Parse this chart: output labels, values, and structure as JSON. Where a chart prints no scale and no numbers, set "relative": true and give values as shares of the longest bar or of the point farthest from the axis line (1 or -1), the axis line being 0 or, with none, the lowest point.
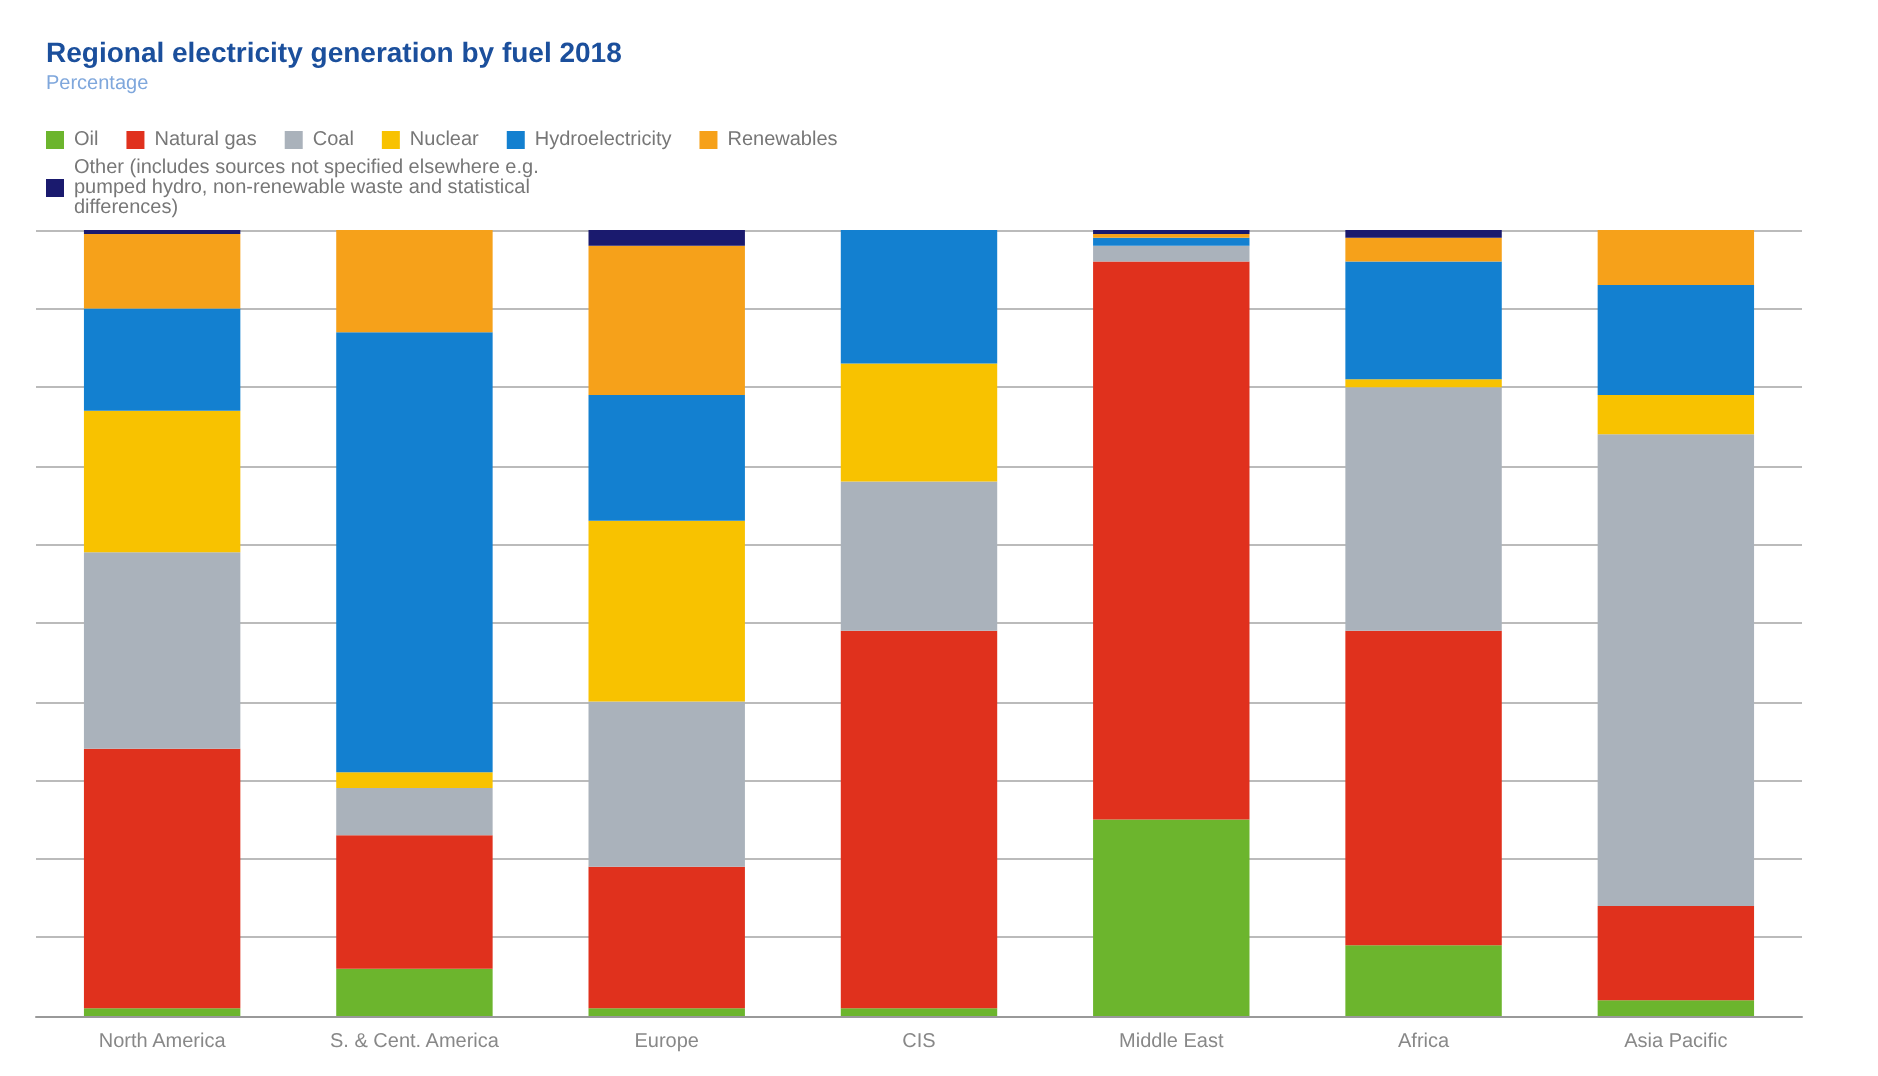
{
  "chart_data": {
    "type": "bar",
    "title": "Regional electricity generation by fuel 2018",
    "subtitle": "Percentage",
    "categories": [
      "North America",
      "S. & Cent. America",
      "Europe",
      "CIS",
      "Middle East",
      "Africa",
      "Asia Pacific"
    ],
    "stacked": true,
    "relative": true,
    "grid": "y",
    "legend": "top left",
    "series": [
      {
        "name": "Oil",
        "color": "#6cb52d",
        "values": [
          0.01,
          0.06,
          0.01,
          0.01,
          0.25,
          0.09,
          0.02
        ]
      },
      {
        "name": "Natural gas",
        "color": "#e0311d",
        "values": [
          0.33,
          0.17,
          0.18,
          0.48,
          0.71,
          0.4,
          0.12
        ]
      },
      {
        "name": "Coal",
        "color": "#aab2bb",
        "values": [
          0.25,
          0.06,
          0.21,
          0.19,
          0.02,
          0.31,
          0.6
        ]
      },
      {
        "name": "Nuclear",
        "color": "#f8c200",
        "values": [
          0.18,
          0.02,
          0.23,
          0.15,
          0,
          0.01,
          0.05
        ]
      },
      {
        "name": "Hydroelectricity",
        "color": "#1380d0",
        "values": [
          0.13,
          0.56,
          0.16,
          0.17,
          0.01,
          0.15,
          0.14
        ]
      },
      {
        "name": "Renewables",
        "color": "#f6a11a",
        "values": [
          0.095,
          0.13,
          0.19,
          0,
          0.005,
          0.03,
          0.07
        ]
      },
      {
        "name": "Other (includes sources not specified elsewhere e.g. pumped hydro, non-renewable waste and statistical differences)",
        "color": "#1a1a6e",
        "values": [
          0.005,
          0,
          0.02,
          0,
          0.005,
          0.01,
          0
        ]
      }
    ]
  }
}
